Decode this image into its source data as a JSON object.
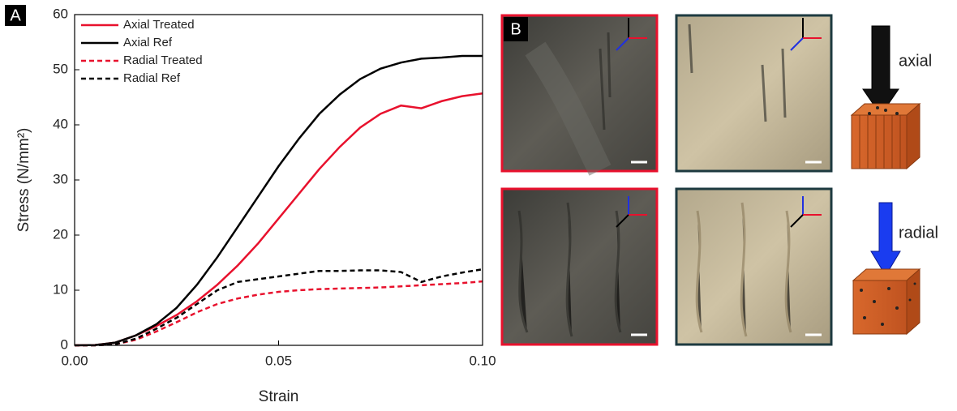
{
  "chart_data": {
    "type": "line",
    "x_label": "Strain",
    "y_label": "Stress (N/mm²)",
    "x": [
      0,
      0.005,
      0.01,
      0.015,
      0.02,
      0.025,
      0.03,
      0.035,
      0.04,
      0.045,
      0.05,
      0.055,
      0.06,
      0.065,
      0.07,
      0.075,
      0.08,
      0.085,
      0.09,
      0.095,
      0.1
    ],
    "series": [
      {
        "name": "Axial Treated",
        "color": "#e8112d",
        "style": "solid",
        "values": [
          0,
          0.05,
          0.5,
          1.8,
          3.5,
          5.5,
          8,
          11,
          14.5,
          18.5,
          23,
          27.5,
          32,
          36,
          39.5,
          42,
          43.5,
          43,
          44.3,
          45.2,
          45.7
        ]
      },
      {
        "name": "Axial Ref",
        "color": "#000000",
        "style": "solid",
        "values": [
          0,
          0.05,
          0.5,
          1.8,
          3.8,
          6.8,
          11,
          16,
          21.5,
          27,
          32.5,
          37.5,
          42,
          45.5,
          48.3,
          50.2,
          51.3,
          52,
          52.2,
          52.5,
          52.5
        ]
      },
      {
        "name": "Radial Treated",
        "color": "#e8112d",
        "style": "dashed",
        "values": [
          0,
          0,
          0.2,
          1,
          2.5,
          4.2,
          6,
          7.5,
          8.5,
          9.2,
          9.7,
          10,
          10.2,
          10.3,
          10.4,
          10.5,
          10.7,
          10.9,
          11.1,
          11.3,
          11.6
        ]
      },
      {
        "name": "Radial Ref",
        "color": "#000000",
        "style": "dashed",
        "values": [
          0,
          0,
          0.2,
          1.2,
          3,
          5,
          7.5,
          10,
          11.5,
          12,
          12.5,
          13,
          13.5,
          13.5,
          13.6,
          13.6,
          13.3,
          11.5,
          12.5,
          13.2,
          13.8
        ]
      }
    ],
    "xlim": [
      0,
      0.1
    ],
    "xticks": [
      {
        "value": 0,
        "label": "0.00"
      },
      {
        "value": 0.05,
        "label": "0.05"
      },
      {
        "value": 0.1,
        "label": "0.10"
      }
    ],
    "ylim": [
      0,
      60
    ],
    "yticks": [
      0,
      10,
      20,
      30,
      40,
      50,
      60
    ],
    "legend": "upper-left"
  },
  "panel_a_label": "A",
  "panel_b_label": "B",
  "diagrams": [
    {
      "label": "axial"
    },
    {
      "label": "radial"
    }
  ]
}
